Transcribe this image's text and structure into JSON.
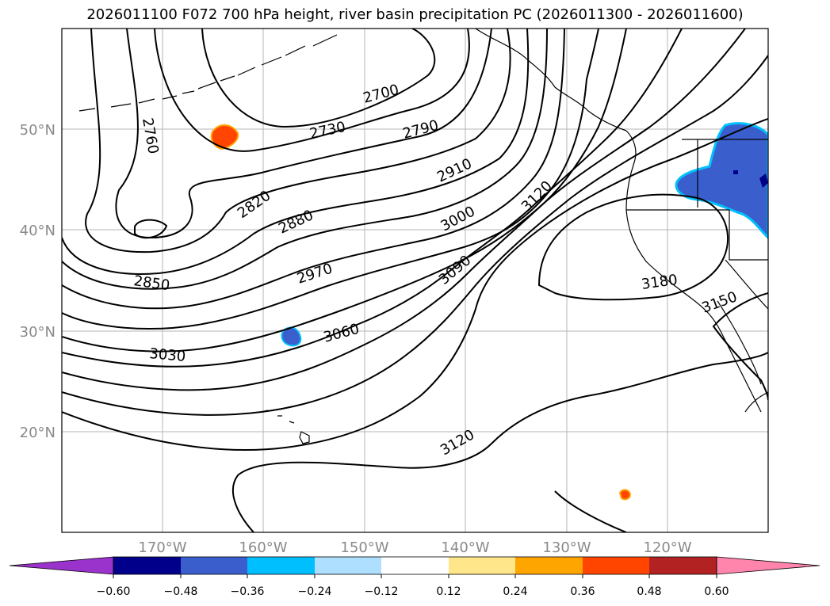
{
  "title": "2026011100 F072 700 hPa height, river basin precipitation PC (2026011300 - 2026011600)",
  "axes": {
    "lat_labels": [
      "50°N",
      "40°N",
      "30°N",
      "20°N"
    ],
    "lon_labels": [
      "170°W",
      "160°W",
      "150°W",
      "140°W",
      "130°W",
      "120°W"
    ]
  },
  "contours": [
    {
      "label": "2700"
    },
    {
      "label": "2730"
    },
    {
      "label": "2760"
    },
    {
      "label": "2790"
    },
    {
      "label": "2820"
    },
    {
      "label": "2850"
    },
    {
      "label": "2880"
    },
    {
      "label": "2910"
    },
    {
      "label": "2970"
    },
    {
      "label": "3000"
    },
    {
      "label": "3030"
    },
    {
      "label": "3060"
    },
    {
      "label": "3090"
    },
    {
      "label": "3120"
    },
    {
      "label": "3120"
    },
    {
      "label": "3150"
    },
    {
      "label": "3180"
    }
  ],
  "colorbar": {
    "ticks": [
      "−0.60",
      "−0.48",
      "−0.36",
      "−0.24",
      "−0.12",
      "0.12",
      "0.24",
      "0.36",
      "0.48",
      "0.60"
    ],
    "colors": [
      "#9933cc",
      "#00008b",
      "#3a5fcd",
      "#00bfff",
      "#afdfff",
      "#ffffff",
      "#ffe68a",
      "#ffa500",
      "#ff4500",
      "#b22222",
      "#ff85ad"
    ]
  }
}
